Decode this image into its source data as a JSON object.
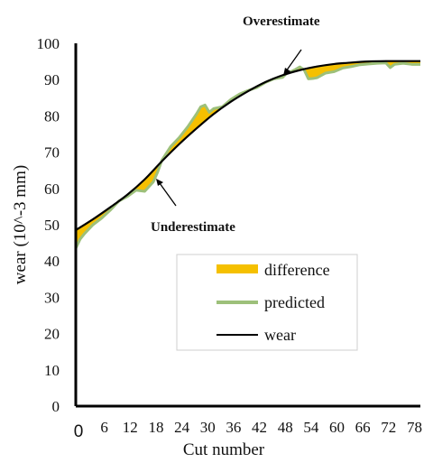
{
  "chart_data": {
    "type": "line",
    "title": "",
    "xlabel": "Cut number",
    "ylabel": "wear (10^-3 mm)",
    "xlim": [
      0,
      80
    ],
    "ylim": [
      0,
      100
    ],
    "x_ticks": [
      "0",
      "6",
      "12",
      "18",
      "24",
      "30",
      "36",
      "42",
      "48",
      "54",
      "60",
      "66",
      "72",
      "78"
    ],
    "y_ticks": [
      "0",
      "10",
      "20",
      "30",
      "40",
      "50",
      "60",
      "70",
      "80",
      "90",
      "100"
    ],
    "grid": false,
    "legend_position": "lower-right",
    "annotations": [
      {
        "text": "Overestimate",
        "x": 51,
        "y": 91
      },
      {
        "text": "Underestimate",
        "x": 17.5,
        "y": 62.5
      }
    ],
    "series": [
      {
        "name": "wear",
        "color": "#000000",
        "x": [
          0,
          4,
          8,
          12,
          16,
          20,
          24,
          28,
          32,
          36,
          40,
          44,
          48,
          52,
          56,
          60,
          64,
          68,
          72,
          76,
          80
        ],
        "values": [
          48.5,
          51.5,
          54.8,
          58.3,
          62.5,
          67.5,
          72.2,
          76.5,
          80.5,
          83.9,
          86.8,
          89.3,
          91.2,
          92.6,
          93.6,
          94.3,
          94.7,
          95.0,
          95.1,
          95.1,
          95.1
        ]
      },
      {
        "name": "predicted",
        "color": "#9dc07a",
        "x": [
          0,
          1,
          2,
          4,
          6,
          8,
          10,
          12,
          14,
          16,
          17,
          18,
          19,
          20,
          22,
          24,
          26,
          28,
          29,
          30,
          31,
          32,
          34,
          36,
          38,
          40,
          42,
          44,
          46,
          48,
          49,
          50,
          51,
          52,
          53,
          54,
          55,
          56,
          58,
          60,
          62,
          64,
          66,
          68,
          70,
          72,
          73,
          74,
          76,
          78,
          80
        ],
        "values": [
          43.5,
          46,
          47.5,
          50,
          51.8,
          54,
          56.5,
          57.8,
          59.5,
          59.2,
          60.5,
          61.8,
          64.5,
          67.8,
          71.5,
          74,
          77,
          80.5,
          82.5,
          83,
          81,
          82,
          82.5,
          84.5,
          86,
          87,
          87.8,
          89.2,
          90.2,
          90.6,
          91.8,
          92.2,
          92.8,
          93.5,
          92.7,
          90.2,
          90.3,
          90.5,
          91.8,
          92.2,
          93.2,
          93.6,
          94.1,
          94.3,
          94.5,
          94.6,
          93.3,
          94.2,
          94.5,
          94.2,
          94.2
        ]
      }
    ],
    "difference": {
      "name": "difference",
      "color": "#f5c000",
      "note_fill_between": "predicted and wear"
    }
  }
}
